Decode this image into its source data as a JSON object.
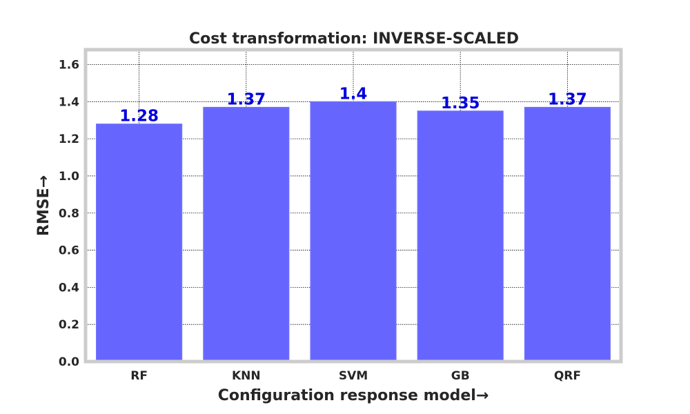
{
  "chart_data": {
    "type": "bar",
    "title": "Cost transformation: INVERSE-SCALED",
    "xlabel": "Configuration response model→",
    "ylabel": "RMSE→",
    "categories": [
      "RF",
      "KNN",
      "SVM",
      "GB",
      "QRF"
    ],
    "values": [
      1.28,
      1.37,
      1.4,
      1.35,
      1.37
    ],
    "data_labels": [
      "1.28",
      "1.37",
      "1.4",
      "1.35",
      "1.37"
    ],
    "ylim": [
      0,
      1.68
    ],
    "yticks": [
      0.0,
      0.2,
      0.4,
      0.6,
      0.8,
      1.0,
      1.2,
      1.4,
      1.6
    ],
    "ytick_labels": [
      "0.0",
      "0.2",
      "0.4",
      "0.6",
      "0.8",
      "1.0",
      "1.2",
      "1.4",
      "1.6"
    ],
    "grid": true,
    "legend": "none",
    "colors": {
      "bar": "#6666ff",
      "bar_edge": "#7777ff",
      "data_label": "#0000dd",
      "frame": "#cccccc",
      "text": "#262626"
    }
  }
}
